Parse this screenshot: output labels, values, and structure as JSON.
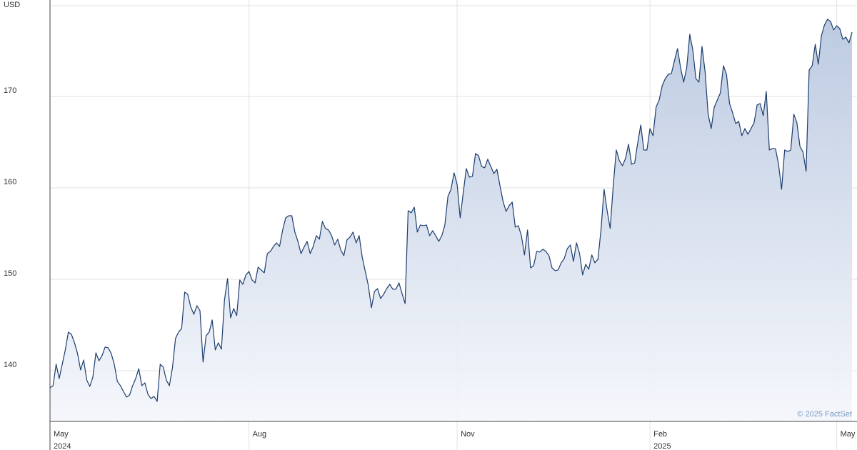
{
  "chart_data": {
    "type": "area-line",
    "y_unit": "USD",
    "credit": "© 2025 FactSet",
    "color": "#1c3d6e",
    "xlim": [
      0,
      262
    ],
    "ylim": [
      134.45,
      179.92
    ],
    "yticks": [
      140,
      150,
      160,
      170
    ],
    "xticks": [
      {
        "value": 0,
        "label": "May"
      },
      {
        "value": 65,
        "label": "Aug"
      },
      {
        "value": 133,
        "label": "Nov"
      },
      {
        "value": 196,
        "label": "Feb"
      },
      {
        "value": 257,
        "label": "May"
      }
    ],
    "x_year_labels": [
      {
        "value": 0,
        "label": "2024"
      },
      {
        "value": 196,
        "label": "2025"
      }
    ],
    "grid": true,
    "values": [
      138.13,
      138.36,
      140.7,
      139.14,
      140.7,
      142.27,
      144.22,
      143.98,
      143.05,
      141.88,
      140.08,
      141.17,
      138.98,
      138.28,
      139.3,
      141.95,
      141.09,
      141.64,
      142.58,
      142.5,
      141.88,
      140.7,
      138.83,
      138.36,
      137.73,
      137.11,
      137.34,
      138.36,
      139.14,
      140.23,
      138.36,
      138.67,
      137.42,
      136.95,
      137.19,
      136.64,
      140.7,
      140.39,
      138.98,
      138.36,
      140.31,
      143.52,
      144.22,
      144.61,
      148.59,
      148.36,
      146.95,
      146.17,
      147.11,
      146.56,
      140.94,
      143.83,
      144.22,
      145.55,
      142.27,
      143.05,
      142.34,
      147.73,
      150.08,
      145.78,
      146.8,
      146.02,
      149.92,
      149.45,
      150.47,
      150.86,
      149.92,
      149.61,
      151.33,
      151.02,
      150.7,
      152.81,
      153.05,
      153.59,
      153.98,
      153.59,
      155.39,
      156.72,
      156.95,
      156.95,
      155.16,
      154.14,
      152.81,
      153.52,
      154.14,
      152.81,
      153.59,
      154.77,
      154.38,
      156.33,
      155.55,
      155.39,
      154.77,
      153.75,
      154.38,
      153.2,
      152.58,
      154.3,
      154.61,
      155.16,
      153.98,
      154.77,
      152.42,
      150.86,
      149.3,
      146.88,
      148.67,
      148.98,
      147.89,
      148.36,
      148.98,
      149.45,
      148.91,
      148.91,
      149.61,
      148.44,
      147.34,
      157.5,
      157.27,
      157.89,
      155.16,
      155.94,
      155.86,
      155.94,
      154.77,
      155.31,
      154.77,
      154.14,
      154.77,
      155.94,
      159.06,
      159.84,
      161.64,
      160.39,
      156.72,
      159.45,
      162.11,
      161.17,
      161.25,
      163.75,
      163.52,
      162.34,
      162.19,
      163.13,
      162.34,
      161.56,
      162.03,
      160.23,
      158.52,
      157.42,
      158.05,
      158.44,
      155.7,
      155.86,
      154.77,
      152.66,
      155.39,
      151.25,
      151.48,
      153.05,
      152.97,
      153.28,
      153.05,
      152.58,
      151.25,
      150.94,
      151.02,
      151.8,
      152.27,
      153.36,
      153.75,
      151.95,
      153.98,
      152.81,
      150.47,
      151.64,
      151.09,
      152.66,
      151.8,
      152.19,
      155.39,
      159.84,
      157.5,
      155.55,
      160.23,
      164.14,
      162.97,
      162.42,
      163.2,
      164.77,
      162.58,
      162.73,
      164.92,
      166.88,
      164.14,
      164.14,
      166.48,
      165.7,
      168.83,
      169.61,
      171.17,
      171.95,
      172.42,
      172.5,
      173.91,
      175.23,
      173.13,
      171.56,
      173.13,
      176.8,
      175.08,
      171.95,
      171.56,
      175.47,
      172.73,
      168.05,
      166.48,
      168.83,
      169.61,
      170.39,
      173.36,
      172.42,
      169.22,
      168.2,
      167.03,
      167.27,
      165.7,
      166.48,
      165.86,
      166.48,
      167.11,
      169.06,
      169.22,
      167.89,
      170.55,
      164.14,
      164.3,
      164.3,
      162.58,
      159.84,
      164.14,
      163.98,
      164.14,
      168.05,
      167.11,
      164.53,
      163.91,
      161.8,
      172.89,
      173.36,
      175.7,
      173.52,
      176.64,
      177.81,
      178.44,
      178.2,
      177.27,
      177.73,
      177.42,
      176.25,
      176.48,
      175.86,
      177.03
    ]
  }
}
